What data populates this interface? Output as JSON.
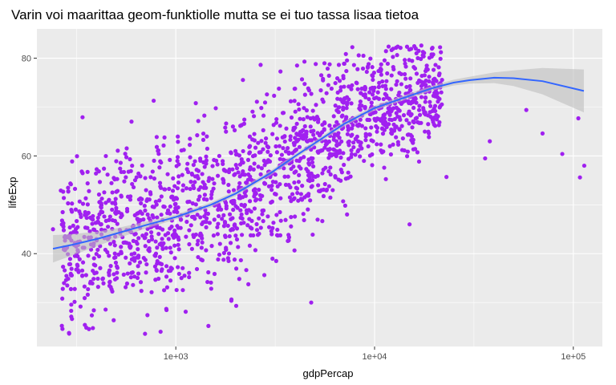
{
  "chart_data": {
    "type": "scatter",
    "title": "Varin voi maarittaa geom-funktiolle mutta se ei tuo tassa lisaa tietoa",
    "xlabel": "gdpPercap",
    "ylabel": "lifeExp",
    "x_scale": "log10",
    "xlim": [
      200,
      140000
    ],
    "ylim": [
      21,
      86
    ],
    "x_ticks": [
      1000,
      10000,
      100000
    ],
    "x_tick_labels": [
      "1e+03",
      "1e+04",
      "1e+05"
    ],
    "x_minor_ticks": [
      316.23,
      3162.28,
      31622.78
    ],
    "y_ticks": [
      40,
      60,
      80
    ],
    "y_tick_labels": [
      "40",
      "60",
      "80"
    ],
    "y_minor_ticks": [
      30,
      50,
      70
    ],
    "grid": true,
    "legend": "none",
    "colors": {
      "panel_background": "#ebebeb",
      "grid": "#ffffff",
      "points": "#a020f0",
      "smooth_line": "#3366ff",
      "confidence_band": "#bebebe"
    },
    "point_count": 1704,
    "smooth": {
      "x": [
        241,
        300,
        400,
        500,
        700,
        1000,
        1500,
        2000,
        3000,
        4000,
        5000,
        7000,
        10000,
        15000,
        20000,
        25000,
        30000,
        40000,
        50000,
        70000,
        113000
      ],
      "y": [
        41.0,
        41.8,
        43.0,
        44.1,
        45.8,
        47.5,
        50.0,
        52.3,
        56.5,
        60.0,
        62.6,
        66.5,
        69.8,
        72.3,
        74.0,
        75.0,
        75.5,
        76.0,
        75.9,
        75.3,
        73.3
      ],
      "lower": [
        38.2,
        39.6,
        41.5,
        43.0,
        45.1,
        47.0,
        49.5,
        51.8,
        56.0,
        59.5,
        62.1,
        66.0,
        69.3,
        71.8,
        73.5,
        74.4,
        74.8,
        74.9,
        74.3,
        72.6,
        68.9
      ],
      "upper": [
        43.8,
        44.0,
        44.5,
        45.2,
        46.5,
        48.0,
        50.5,
        52.8,
        57.0,
        60.5,
        63.1,
        67.0,
        70.3,
        72.8,
        74.5,
        75.6,
        76.2,
        77.1,
        77.5,
        78.0,
        77.7
      ]
    }
  }
}
